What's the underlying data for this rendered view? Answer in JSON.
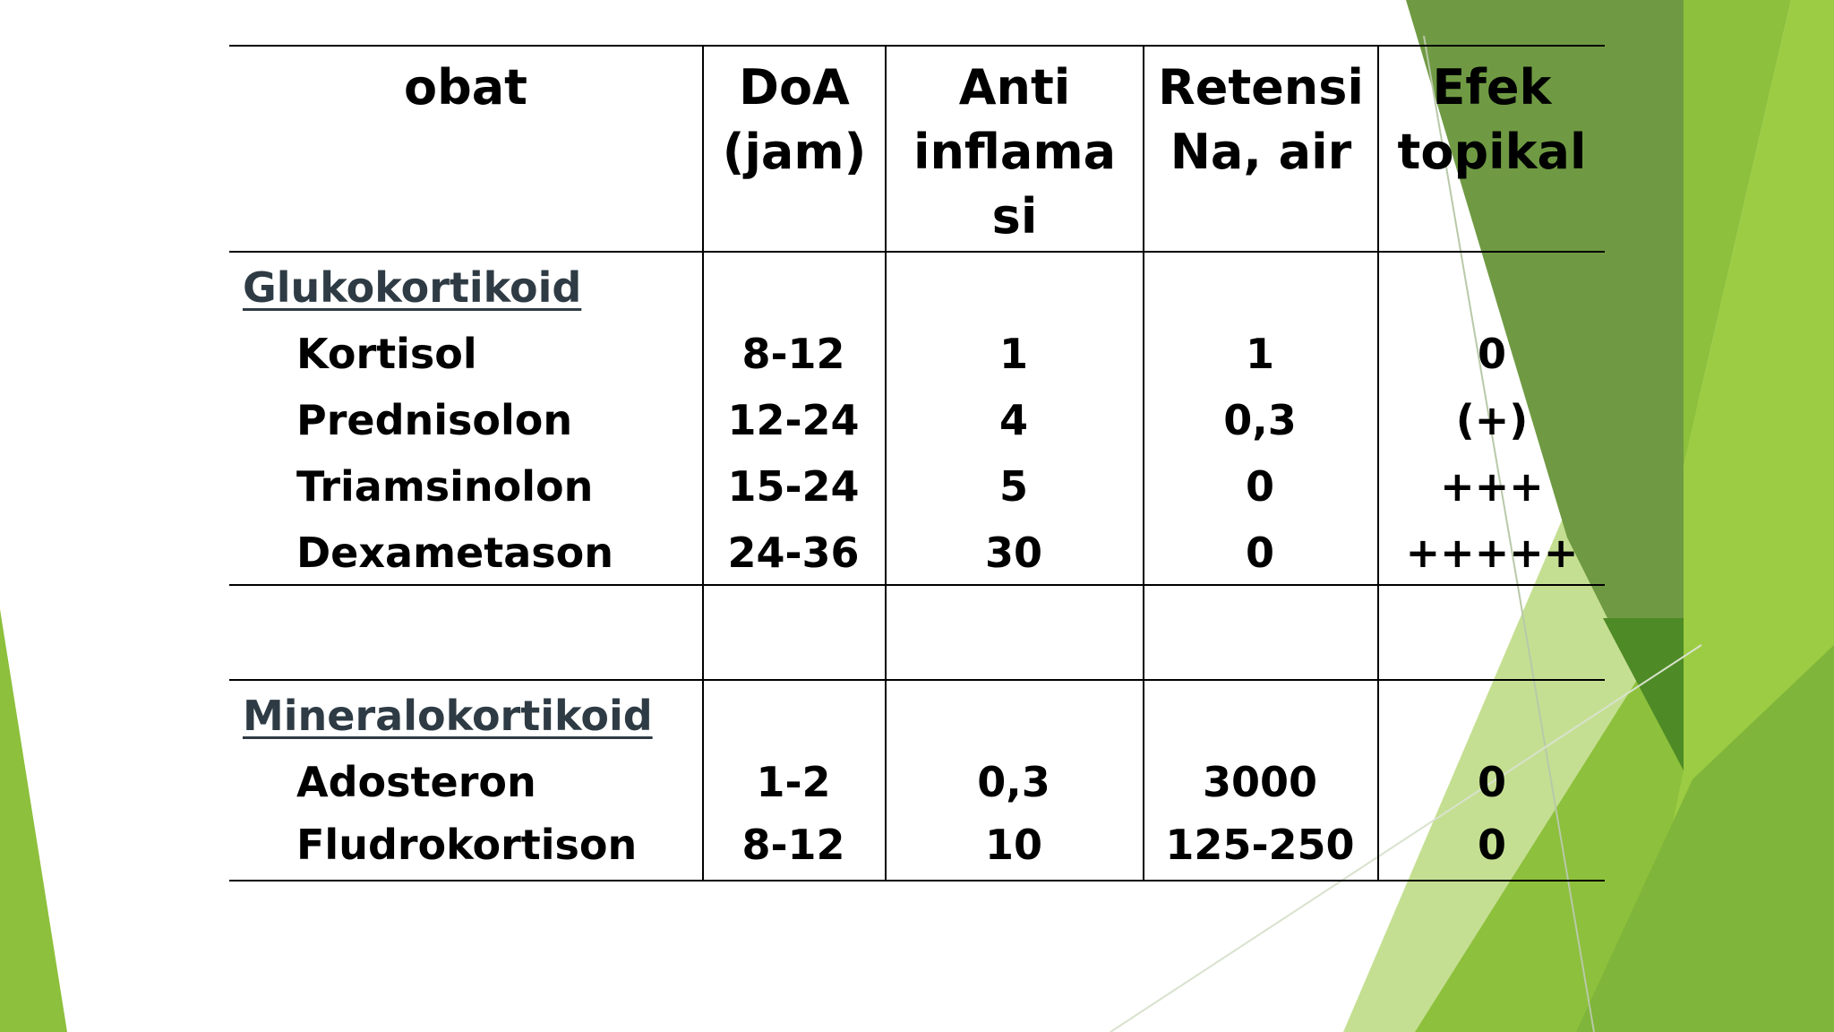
{
  "table": {
    "headers": [
      "obat",
      "DoA\n(jam)",
      "Anti\ninflama\nsi",
      "Retensi\nNa, air",
      "Efek\ntopikal"
    ],
    "groups": [
      {
        "label": "Glukokortikoid",
        "rows": [
          {
            "name": "Kortisol",
            "doa": "8-12",
            "anti": "1",
            "retensi": "1",
            "efek": "0"
          },
          {
            "name": "Prednisolon",
            "doa": "12-24",
            "anti": "4",
            "retensi": "0,3",
            "efek": "(+)"
          },
          {
            "name": "Triamsinolon",
            "doa": "15-24",
            "anti": "5",
            "retensi": "0",
            "efek": "+++"
          },
          {
            "name": "Dexametason",
            "doa": "24-36",
            "anti": "30",
            "retensi": "0",
            "efek": "+++++"
          }
        ]
      },
      {
        "label": "Mineralokortikoid",
        "rows": [
          {
            "name": "Adosteron",
            "doa": "1-2",
            "anti": "0,3",
            "retensi": "3000",
            "efek": "0"
          },
          {
            "name": "Fludrokortison",
            "doa": "8-12",
            "anti": "10",
            "retensi": "125-250",
            "efek": "0"
          }
        ]
      }
    ]
  },
  "theme": {
    "background": "#ffffff",
    "text": "#000000",
    "group_label_color": "#2e3b44",
    "accent_light": "#c5df92",
    "accent_mid": "#8dc03c",
    "accent_dark": "#6f9a43",
    "accent_deep": "#4e8a25"
  }
}
